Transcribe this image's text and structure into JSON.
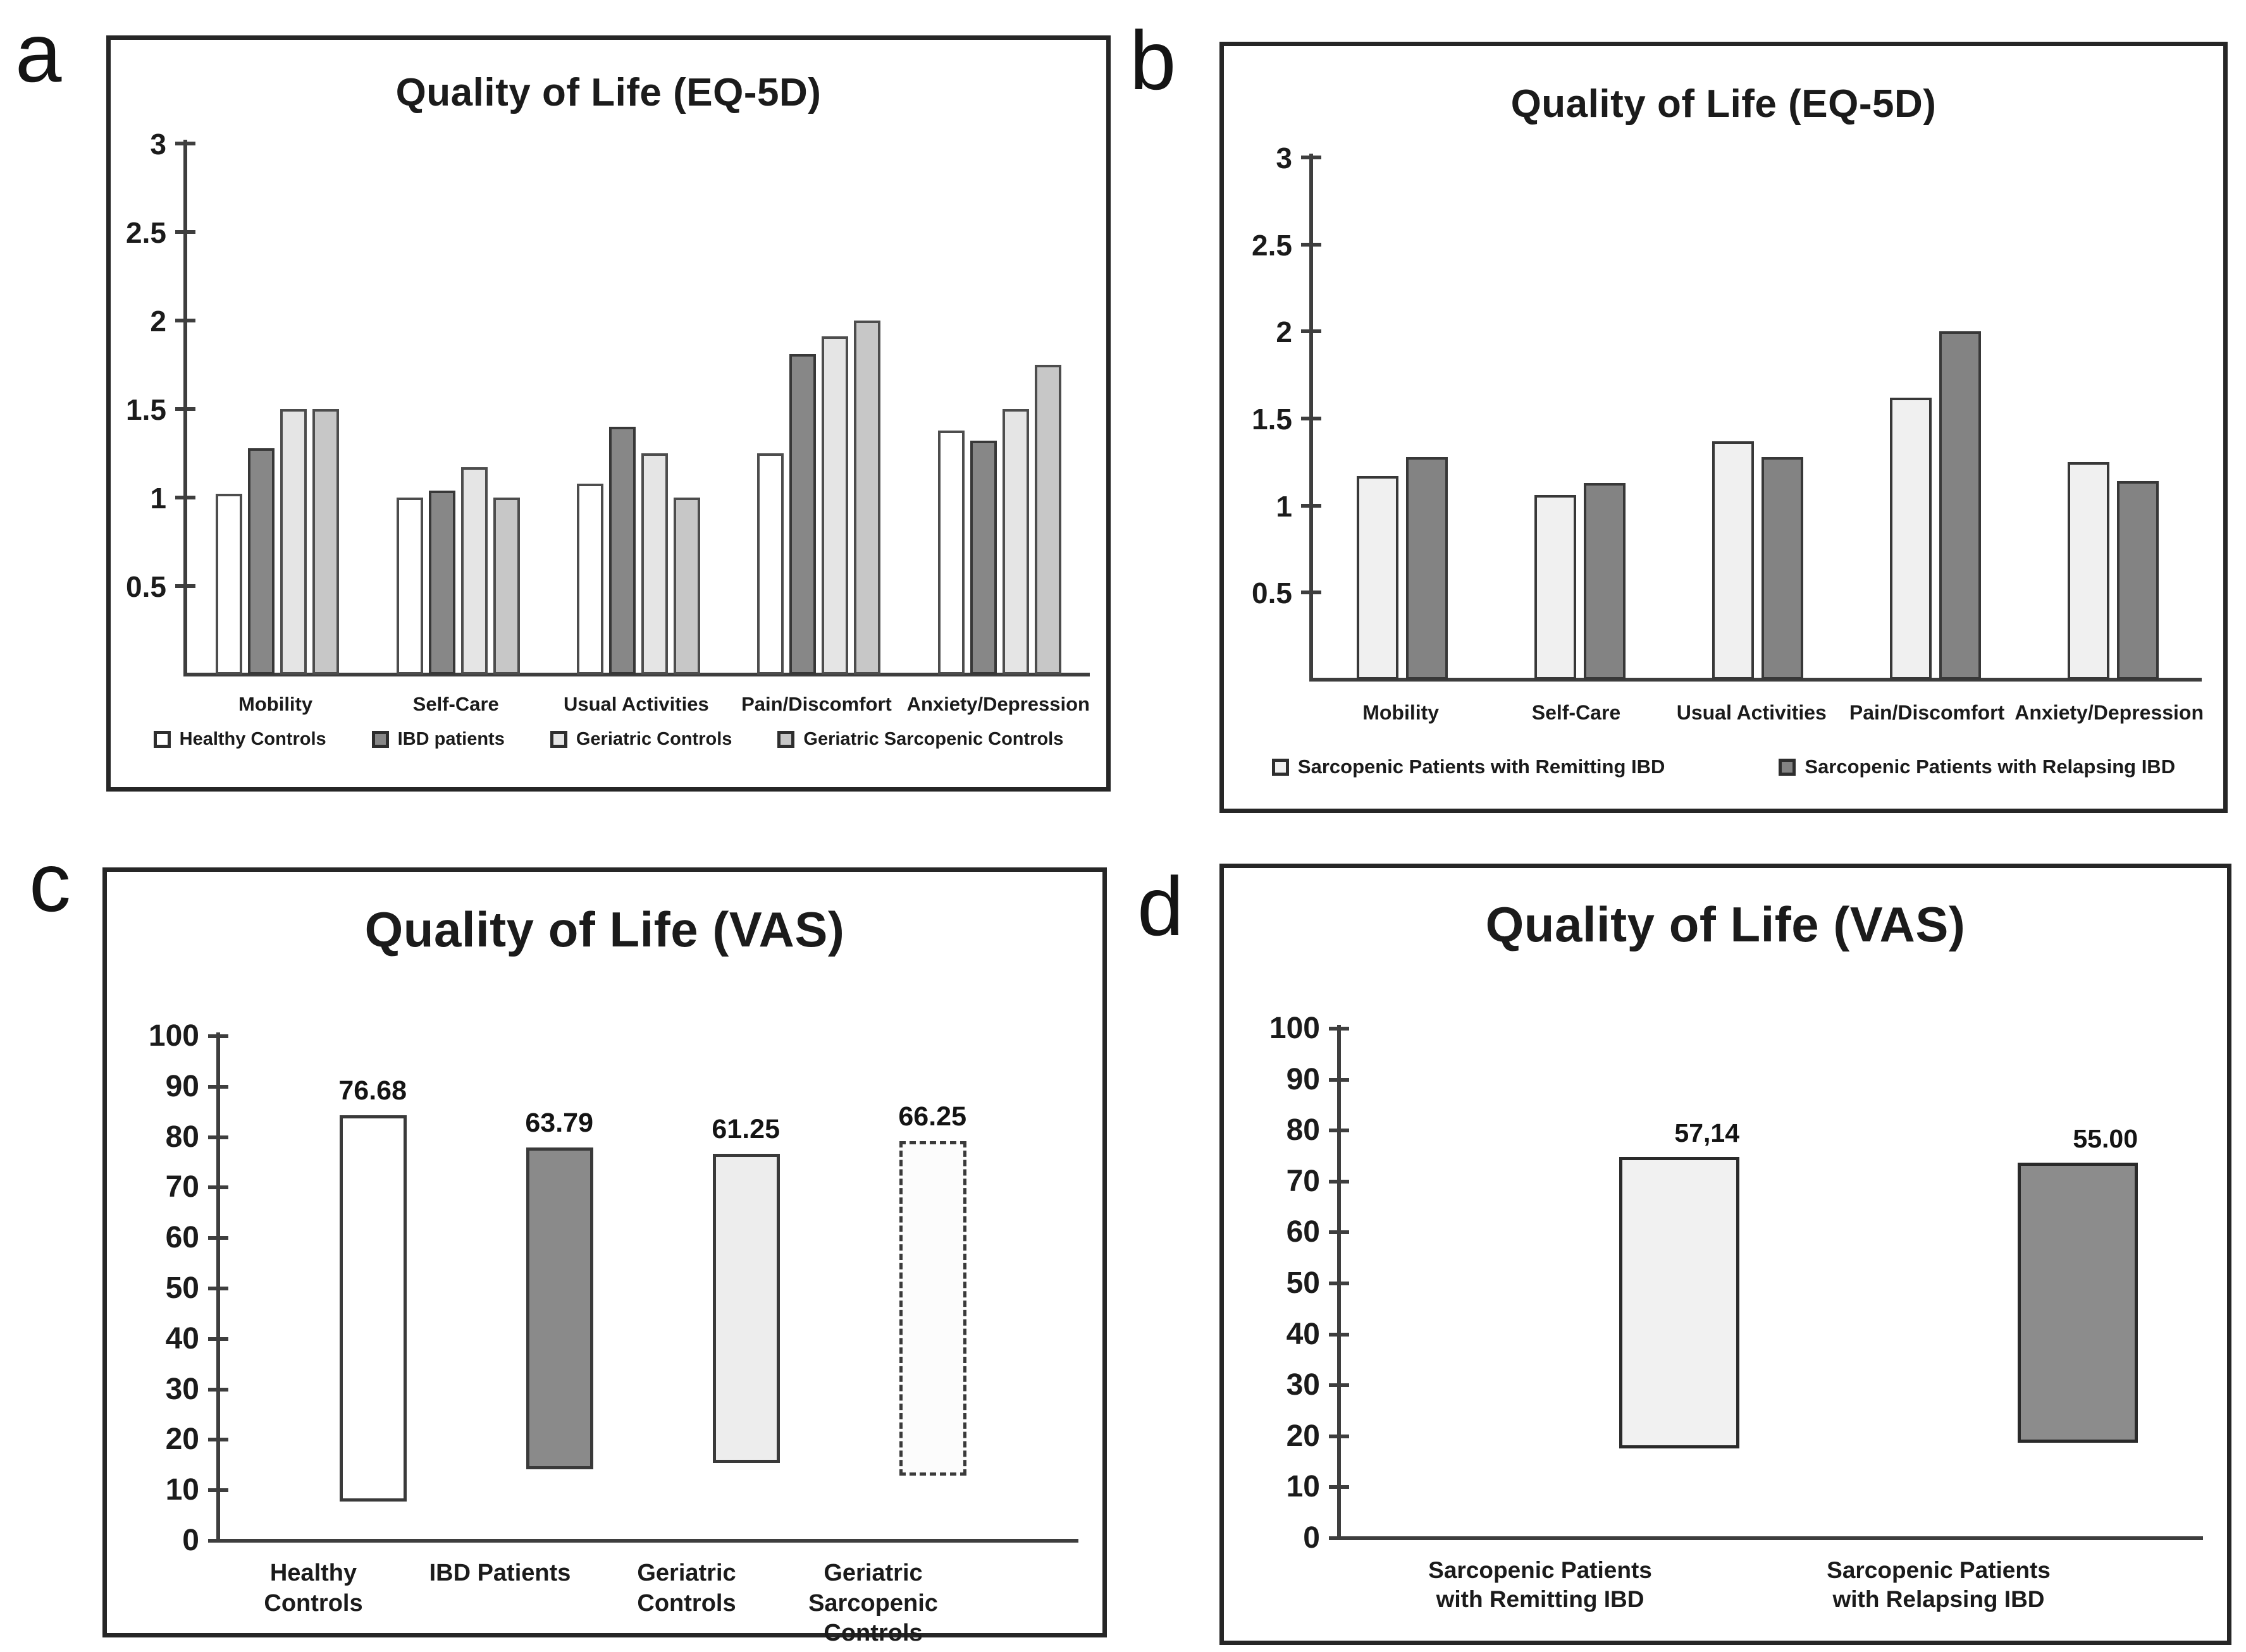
{
  "figure": {
    "panel_letters": {
      "a": "a",
      "b": "b",
      "c": "c",
      "d": "d"
    }
  },
  "chart_data": [
    {
      "panel": "a",
      "type": "bar",
      "title": "Quality of Life (EQ-5D)",
      "categories": [
        "Mobility",
        "Self-Care",
        "Usual Activities",
        "Pain/Discomfort",
        "Anxiety/Depression"
      ],
      "series": [
        {
          "name": "Healthy Controls",
          "values": [
            1.02,
            1.0,
            1.08,
            1.25,
            1.38
          ],
          "fill": "#ffffff",
          "border": "#4d4d4d"
        },
        {
          "name": "IBD patients",
          "values": [
            1.28,
            1.04,
            1.4,
            1.81,
            1.32
          ],
          "fill": "#878787",
          "border": "#383838"
        },
        {
          "name": "Geriatric Controls",
          "values": [
            1.5,
            1.17,
            1.25,
            1.91,
            1.5
          ],
          "fill": "#e5e5e5",
          "border": "#4d4d4d"
        },
        {
          "name": "Geriatric Sarcopenic Controls",
          "values": [
            1.5,
            1.0,
            1.0,
            2.0,
            1.75
          ],
          "fill": "#c7c7c7",
          "border": "#4d4d4d"
        }
      ],
      "ylim": [
        0,
        3
      ],
      "yticks": [
        "3",
        "2.5",
        "2",
        "1.5",
        "1",
        "0.5"
      ],
      "grid": false,
      "legend_position": "bottom"
    },
    {
      "panel": "b",
      "type": "bar",
      "title": "Quality of Life (EQ-5D)",
      "categories": [
        "Mobility",
        "Self-Care",
        "Usual Activities",
        "Pain/Discomfort",
        "Anxiety/Depression"
      ],
      "series": [
        {
          "name": "Sarcopenic Patients with Remitting IBD",
          "values": [
            1.17,
            1.06,
            1.37,
            1.62,
            1.25
          ],
          "fill": "#f0f0f0",
          "border": "#383838"
        },
        {
          "name": "Sarcopenic Patients with Relapsing IBD",
          "values": [
            1.28,
            1.13,
            1.28,
            2.0,
            1.14
          ],
          "fill": "#838383",
          "border": "#383838"
        }
      ],
      "ylim": [
        0,
        3
      ],
      "yticks": [
        "3",
        "2.5",
        "2",
        "1.5",
        "1",
        "0.5"
      ],
      "grid": false,
      "legend_position": "bottom"
    },
    {
      "panel": "c",
      "type": "bar",
      "title": "Quality of Life (VAS)",
      "categories": [
        "Healthy Controls",
        "IBD Patients",
        "Geriatric Controls",
        "Geriatric Sarcopenic\nControls"
      ],
      "bars": [
        {
          "label": "Healthy Controls",
          "value": 76.68,
          "display": "76.68",
          "fill": "#ffffff",
          "border": "#3a3a3a"
        },
        {
          "label": "IBD Patients",
          "value": 63.79,
          "display": "63.79",
          "fill": "#8a8a8a",
          "border": "#3a3a3a"
        },
        {
          "label": "Geriatric Controls",
          "value": 61.25,
          "display": "61.25",
          "fill": "#ededed",
          "border": "#3a3a3a"
        },
        {
          "label": "Geriatric Sarcopenic Controls",
          "value": 66.25,
          "display": "66.25",
          "fill": "#fcfcfc",
          "border": "#3a3a3a",
          "pattern": "diagonal-hatch",
          "border_style": "dashed"
        }
      ],
      "ylim": [
        0,
        100
      ],
      "yticks": [
        "100",
        "90",
        "80",
        "70",
        "60",
        "50",
        "40",
        "30",
        "20",
        "10",
        "0"
      ],
      "grid": false
    },
    {
      "panel": "d",
      "type": "bar",
      "title": "Quality of Life (VAS)",
      "categories": [
        "Sarcopenic Patients\nwith Remitting IBD",
        "Sarcopenic Patients\nwith Relapsing IBD"
      ],
      "bars": [
        {
          "label": "Sarcopenic Patients with Remitting IBD",
          "value": 57.14,
          "display": "57,14",
          "fill": "#f1f1f1",
          "border": "#2a2a2a"
        },
        {
          "label": "Sarcopenic Patients with Relapsing IBD",
          "value": 55.0,
          "display": "55.00",
          "fill": "#8c8c8c",
          "border": "#2a2a2a"
        }
      ],
      "ylim": [
        0,
        100
      ],
      "yticks": [
        "100",
        "90",
        "80",
        "70",
        "60",
        "50",
        "40",
        "30",
        "20",
        "10",
        "0"
      ],
      "grid": false
    }
  ]
}
